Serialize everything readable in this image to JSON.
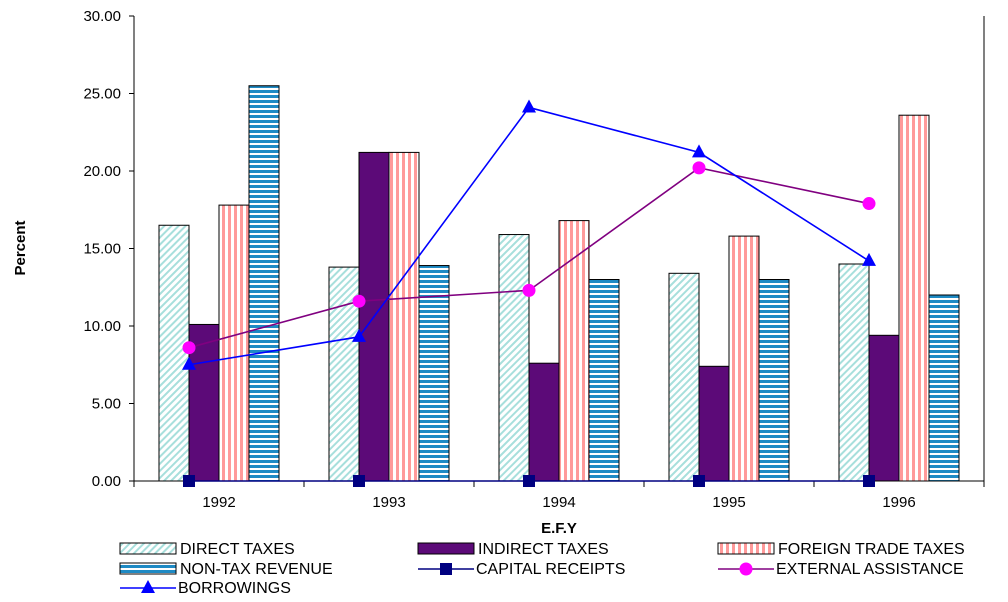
{
  "chart_data": {
    "type": "bar",
    "xlabel": "E.F.Y",
    "ylabel": "Percent",
    "ylim": [
      0,
      30
    ],
    "yticks": [
      "0.00",
      "5.00",
      "10.00",
      "15.00",
      "20.00",
      "25.00",
      "30.00"
    ],
    "categories": [
      "1992",
      "1993",
      "1994",
      "1995",
      "1996"
    ],
    "grid": false,
    "legend_position": "bottom",
    "bar_series": [
      {
        "name": "DIRECT TAXES",
        "values": [
          16.5,
          13.8,
          15.9,
          13.4,
          14.0
        ],
        "fill": "#c2ecea",
        "pattern": "diagonal-hatch"
      },
      {
        "name": "INDIRECT TAXES",
        "values": [
          10.1,
          21.2,
          7.6,
          7.4,
          9.4
        ],
        "fill": "#5c0a78",
        "pattern": "solid"
      },
      {
        "name": "FOREIGN TRADE TAXES",
        "values": [
          17.8,
          21.2,
          16.8,
          15.8,
          23.6
        ],
        "fill": "#ff9a9a",
        "pattern": "vertical-stripes"
      },
      {
        "name": "NON-TAX REVENUE",
        "values": [
          25.5,
          13.9,
          13.0,
          13.0,
          12.0
        ],
        "fill": "#1e8ac4",
        "pattern": "horizontal-stripes"
      }
    ],
    "line_series": [
      {
        "name": "CAPITAL RECEIPTS",
        "values": [
          0,
          0,
          0,
          0,
          0
        ],
        "color": "#000080",
        "marker": "square"
      },
      {
        "name": "EXTERNAL ASSISTANCE",
        "values": [
          8.6,
          11.6,
          12.3,
          20.2,
          17.9
        ],
        "color": "#800080",
        "marker": "circle",
        "marker_color": "#ff00ff"
      },
      {
        "name": "BORROWINGS",
        "values": [
          7.5,
          9.3,
          24.1,
          21.2,
          14.2
        ],
        "color": "#0000ff",
        "marker": "triangle"
      }
    ]
  }
}
